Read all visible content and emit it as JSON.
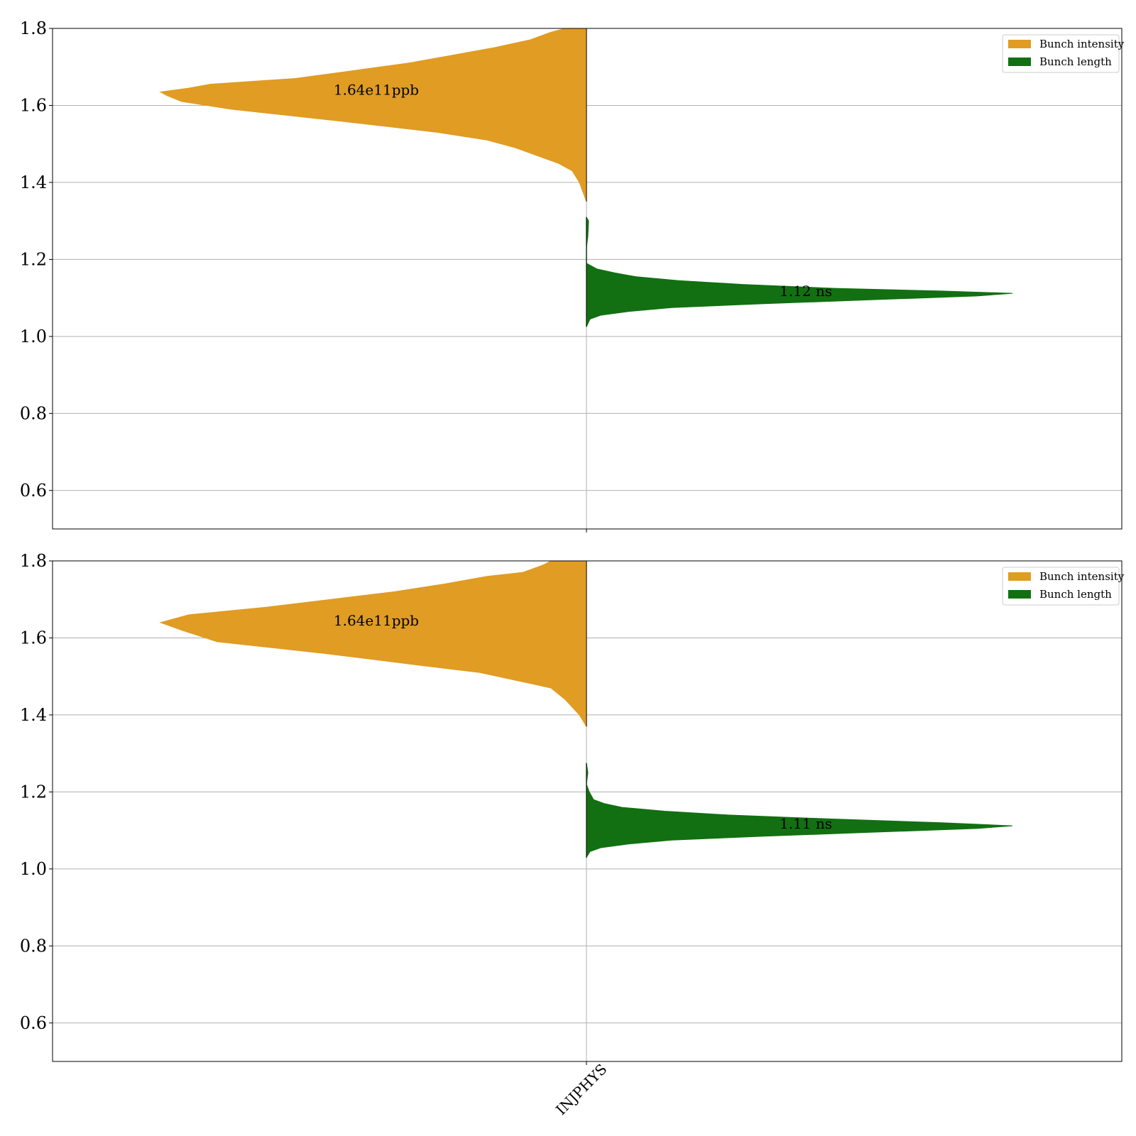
{
  "chart_data": [
    {
      "type": "violin",
      "subtype": "split violin",
      "ylim": [
        0.5,
        1.8
      ],
      "yticks": [
        "0.6",
        "0.8",
        "1.0",
        "1.2",
        "1.4",
        "1.6",
        "1.8"
      ],
      "grid": "y",
      "categories": [],
      "legend": {
        "placement": "upper right",
        "entries": [
          "Bunch intensity",
          "Bunch length"
        ]
      },
      "series": [
        {
          "name": "Bunch intensity",
          "side": "left",
          "color": "#e09c23",
          "annotation": "1.64e11ppb",
          "profile": [
            [
              1.35,
              0.0
            ],
            [
              1.4,
              0.01
            ],
            [
              1.43,
              0.02
            ],
            [
              1.45,
              0.04
            ],
            [
              1.47,
              0.07
            ],
            [
              1.49,
              0.1
            ],
            [
              1.51,
              0.14
            ],
            [
              1.53,
              0.21
            ],
            [
              1.56,
              0.35
            ],
            [
              1.59,
              0.5
            ],
            [
              1.61,
              0.57
            ],
            [
              1.625,
              0.59
            ],
            [
              1.635,
              0.6
            ],
            [
              1.645,
              0.56
            ],
            [
              1.655,
              0.53
            ],
            [
              1.67,
              0.41
            ],
            [
              1.69,
              0.33
            ],
            [
              1.71,
              0.25
            ],
            [
              1.73,
              0.19
            ],
            [
              1.75,
              0.13
            ],
            [
              1.77,
              0.08
            ],
            [
              1.79,
              0.05
            ],
            [
              1.8,
              0.03
            ]
          ]
        },
        {
          "name": "Bunch length",
          "side": "right",
          "color": "#127012",
          "annotation": "1.12 ns",
          "profile": [
            [
              1.025,
              0.0
            ],
            [
              1.045,
              0.005
            ],
            [
              1.055,
              0.02
            ],
            [
              1.065,
              0.06
            ],
            [
              1.075,
              0.12
            ],
            [
              1.085,
              0.25
            ],
            [
              1.095,
              0.4
            ],
            [
              1.105,
              0.55
            ],
            [
              1.112,
              0.6
            ],
            [
              1.118,
              0.5
            ],
            [
              1.125,
              0.35
            ],
            [
              1.135,
              0.22
            ],
            [
              1.145,
              0.13
            ],
            [
              1.155,
              0.07
            ],
            [
              1.165,
              0.04
            ],
            [
              1.175,
              0.015
            ],
            [
              1.19,
              0.0
            ],
            [
              1.23,
              0.0
            ],
            [
              1.26,
              0.002
            ],
            [
              1.3,
              0.003
            ],
            [
              1.31,
              0.0
            ]
          ]
        }
      ]
    },
    {
      "type": "violin",
      "subtype": "split violin",
      "ylim": [
        0.5,
        1.8
      ],
      "yticks": [
        "0.6",
        "0.8",
        "1.0",
        "1.2",
        "1.4",
        "1.6",
        "1.8"
      ],
      "grid": "y",
      "categories": [
        "INJPHYS"
      ],
      "legend": {
        "placement": "upper right",
        "entries": [
          "Bunch intensity",
          "Bunch length"
        ]
      },
      "series": [
        {
          "name": "Bunch intensity",
          "side": "left",
          "color": "#e09c23",
          "annotation": "1.64e11ppb",
          "profile": [
            [
              1.37,
              0.0
            ],
            [
              1.4,
              0.01
            ],
            [
              1.44,
              0.03
            ],
            [
              1.47,
              0.05
            ],
            [
              1.49,
              0.1
            ],
            [
              1.51,
              0.15
            ],
            [
              1.53,
              0.24
            ],
            [
              1.56,
              0.37
            ],
            [
              1.59,
              0.52
            ],
            [
              1.62,
              0.57
            ],
            [
              1.64,
              0.6
            ],
            [
              1.66,
              0.56
            ],
            [
              1.68,
              0.45
            ],
            [
              1.7,
              0.36
            ],
            [
              1.72,
              0.27
            ],
            [
              1.74,
              0.2
            ],
            [
              1.76,
              0.14
            ],
            [
              1.77,
              0.09
            ],
            [
              1.79,
              0.06
            ],
            [
              1.8,
              0.05
            ]
          ]
        },
        {
          "name": "Bunch length",
          "side": "right",
          "color": "#127012",
          "annotation": "1.11 ns",
          "profile": [
            [
              1.03,
              0.0
            ],
            [
              1.045,
              0.005
            ],
            [
              1.055,
              0.02
            ],
            [
              1.065,
              0.06
            ],
            [
              1.075,
              0.12
            ],
            [
              1.085,
              0.25
            ],
            [
              1.095,
              0.4
            ],
            [
              1.105,
              0.55
            ],
            [
              1.112,
              0.6
            ],
            [
              1.12,
              0.5
            ],
            [
              1.13,
              0.34
            ],
            [
              1.14,
              0.2
            ],
            [
              1.15,
              0.11
            ],
            [
              1.16,
              0.05
            ],
            [
              1.17,
              0.025
            ],
            [
              1.18,
              0.01
            ],
            [
              1.2,
              0.004
            ],
            [
              1.22,
              0.0
            ],
            [
              1.25,
              0.002
            ],
            [
              1.275,
              0.0
            ]
          ]
        }
      ]
    }
  ]
}
